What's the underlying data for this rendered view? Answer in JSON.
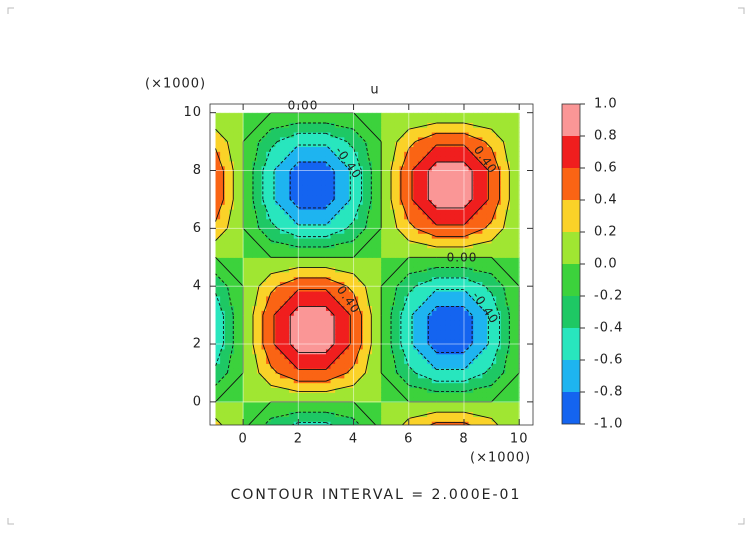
{
  "chart_data": {
    "type": "contour",
    "title": "u",
    "x_multiplier": "(×1000)",
    "y_multiplier": "(×1000)",
    "annotation": "CONTOUR INTERVAL = 2.000E-01",
    "contour_labels": [
      "0.00",
      "-0.40",
      "0.40",
      "0.00",
      "-0.40",
      "0.40"
    ],
    "x": [
      -1,
      0,
      1,
      2,
      3,
      4,
      5,
      6,
      7,
      8,
      9,
      10
    ],
    "y": [
      -1,
      0,
      1,
      2,
      3,
      4,
      5,
      6,
      7,
      8,
      9,
      10
    ],
    "z": [
      [
        0.35,
        0,
        -0.35,
        -0.56,
        -0.56,
        -0.35,
        0,
        0.35,
        0.56,
        0.56,
        0.35,
        0
      ],
      [
        0,
        0,
        0,
        0,
        0,
        0,
        0,
        0,
        0,
        0,
        0,
        0
      ],
      [
        -0.35,
        0,
        0.35,
        0.56,
        0.56,
        0.35,
        0,
        -0.35,
        -0.56,
        -0.56,
        -0.35,
        0
      ],
      [
        -0.56,
        0,
        0.56,
        0.9,
        0.9,
        0.56,
        0,
        -0.56,
        -0.9,
        -0.9,
        -0.56,
        0
      ],
      [
        -0.56,
        0,
        0.56,
        0.9,
        0.9,
        0.56,
        0,
        -0.56,
        -0.9,
        -0.9,
        -0.56,
        0
      ],
      [
        -0.35,
        0,
        0.35,
        0.56,
        0.56,
        0.35,
        0,
        -0.35,
        -0.56,
        -0.56,
        -0.35,
        0
      ],
      [
        0,
        0,
        0,
        0,
        0,
        0,
        0,
        0,
        0,
        0,
        0,
        0
      ],
      [
        0.35,
        0,
        -0.35,
        -0.56,
        -0.56,
        -0.35,
        0,
        0.35,
        0.56,
        0.56,
        0.35,
        0
      ],
      [
        0.56,
        0,
        -0.56,
        -0.9,
        -0.9,
        -0.56,
        0,
        0.56,
        0.9,
        0.9,
        0.56,
        0
      ],
      [
        0.56,
        0,
        -0.56,
        -0.9,
        -0.9,
        -0.56,
        0,
        0.56,
        0.9,
        0.9,
        0.56,
        0
      ],
      [
        0.35,
        0,
        -0.35,
        -0.56,
        -0.56,
        -0.35,
        0,
        0.35,
        0.56,
        0.56,
        0.35,
        0
      ],
      [
        0,
        0,
        0,
        0,
        0,
        0,
        0,
        0,
        0,
        0,
        0,
        0
      ]
    ],
    "xlim": [
      -1.2,
      10.5
    ],
    "ylim": [
      -0.8,
      10.3
    ],
    "xticks": [
      0,
      2,
      4,
      6,
      8,
      10
    ],
    "yticks": [
      0,
      2,
      4,
      6,
      8,
      10
    ],
    "grid": true,
    "levels": [
      {
        "value": -1,
        "label": "-1.0"
      },
      {
        "value": -0.8,
        "label": "-0.8"
      },
      {
        "value": -0.6,
        "label": "-0.6"
      },
      {
        "value": -0.4,
        "label": "-0.4"
      },
      {
        "value": -0.2,
        "label": "-0.2"
      },
      {
        "value": 0,
        "label": "0.0"
      },
      {
        "value": 0.2,
        "label": "0.2"
      },
      {
        "value": 0.4,
        "label": "0.4"
      },
      {
        "value": 0.6,
        "label": "0.6"
      },
      {
        "value": 0.8,
        "label": "0.8"
      },
      {
        "value": 1,
        "label": "1.0"
      }
    ],
    "colors": [
      "#1464f0",
      "#1eb4f0",
      "#28e6be",
      "#1ec864",
      "#3cd23c",
      "#a0e632",
      "#fad228",
      "#fa6414",
      "#f01e1e",
      "#fa9696"
    ]
  }
}
